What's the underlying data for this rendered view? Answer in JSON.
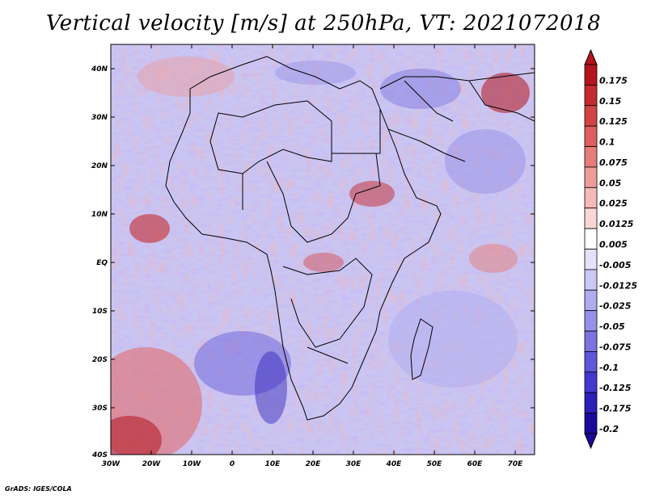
{
  "title": "Vertical velocity [m/s] at 250hPa, VT: 2021072018",
  "credit": "GrADS: IGES/COLA",
  "map": {
    "region": "Africa",
    "y_ticks": [
      "40N",
      "30N",
      "20N",
      "10N",
      "EQ",
      "10S",
      "20S",
      "30S",
      "40S"
    ],
    "x_ticks": [
      "30W",
      "20W",
      "10W",
      "0",
      "10E",
      "20E",
      "30E",
      "40E",
      "50E",
      "60E",
      "70E"
    ]
  },
  "colorbar": {
    "labels": [
      "0.175",
      "0.15",
      "0.125",
      "0.1",
      "0.075",
      "0.05",
      "0.025",
      "0.0125",
      "0.005",
      "-0.005",
      "-0.0125",
      "-0.025",
      "-0.05",
      "-0.075",
      "-0.1",
      "-0.125",
      "-0.175",
      "-0.2"
    ],
    "colors": [
      "#b3141e",
      "#c42a2e",
      "#d24444",
      "#dd5f5f",
      "#e67d7a",
      "#ee9c98",
      "#f4bab6",
      "#f9d7d4",
      "#ffffff",
      "#e4e2fa",
      "#cbc8f5",
      "#b0acef",
      "#9590e8",
      "#7a73e1",
      "#5f57d9",
      "#4338cf",
      "#2c1fb8",
      "#1a0a9a"
    ]
  }
}
